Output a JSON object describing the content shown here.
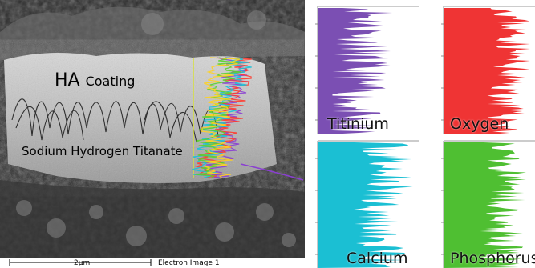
{
  "sem_image": {
    "overlay_labels": {
      "ha": "HA",
      "coating": "Coating",
      "substrate": "Sodium Hydrogen Titanate"
    },
    "scale_bar_label": "2μm",
    "image_label": "Electron Image 1",
    "linescan_colors": [
      "#8a3fd1",
      "#ff3b2f",
      "#17c2d9",
      "#5bd12a",
      "#ffd21f"
    ]
  },
  "map_panels": [
    {
      "label": "Titinium",
      "color": "#7b4fb3"
    },
    {
      "label": "Oxygen",
      "color": "#ef3434"
    },
    {
      "label": "Calcium",
      "color": "#1bbfd3"
    },
    {
      "label": "Phosphorus",
      "color": "#4fbf32"
    }
  ]
}
